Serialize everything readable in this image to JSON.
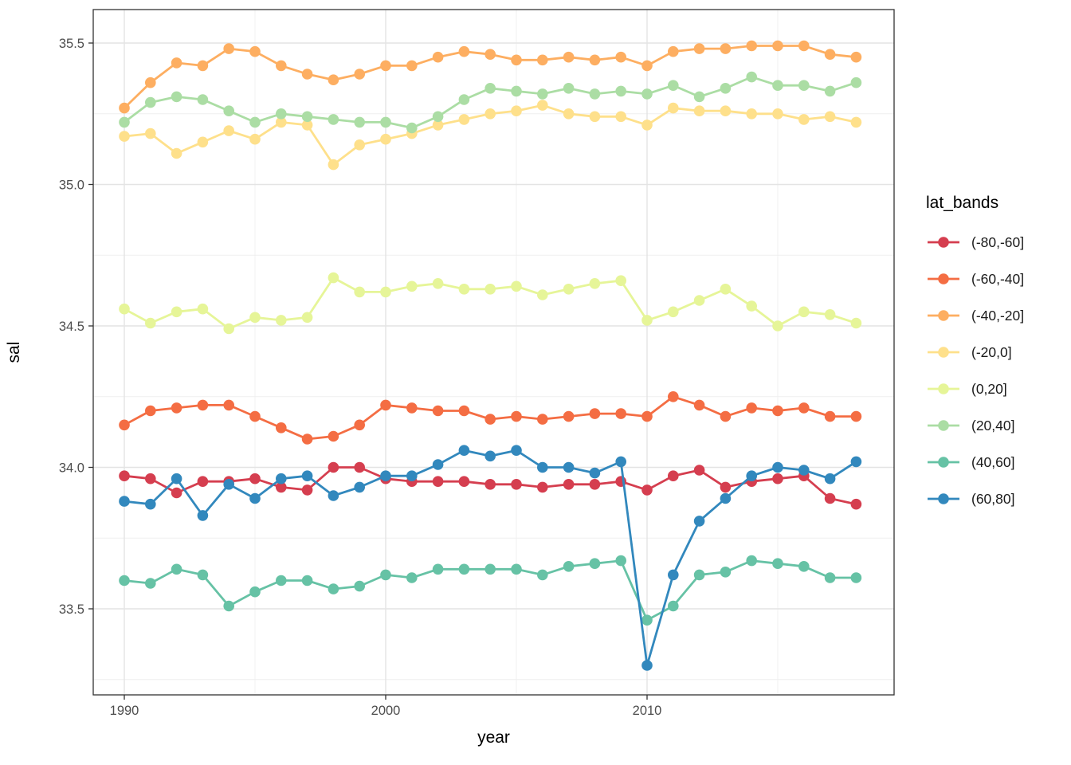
{
  "figure": {
    "x_axis_label": "year",
    "y_axis_label": "sal",
    "legend_title": "lat_bands"
  },
  "chart_data": {
    "type": "line",
    "title": "",
    "xlabel": "year",
    "ylabel": "sal",
    "legend_title": "lat_bands",
    "legend_position": "right",
    "grid": "white panel, light-gray major and minor gridlines, dark panel border (ggplot theme_bw style)",
    "marker": "filled circle on line",
    "x": [
      1990,
      1991,
      1992,
      1993,
      1994,
      1995,
      1996,
      1997,
      1998,
      1999,
      2000,
      2001,
      2002,
      2003,
      2004,
      2005,
      2006,
      2007,
      2008,
      2009,
      2010,
      2011,
      2012,
      2013,
      2014,
      2015,
      2016,
      2017,
      2018
    ],
    "x_ticks": [
      1990,
      2000,
      2010
    ],
    "x_tick_labels": [
      "1990",
      "2000",
      "2010"
    ],
    "x_minor_ticks": [
      1995,
      2005,
      2015
    ],
    "y_ticks": [
      33.5,
      34.0,
      34.5,
      35.0,
      35.5
    ],
    "y_tick_labels": [
      "33.5",
      "34.0",
      "34.5",
      "35.0",
      "35.5"
    ],
    "y_minor_ticks": [
      33.25,
      33.75,
      34.25,
      34.75,
      35.25
    ],
    "xlim": [
      1988.8,
      2019.4
    ],
    "ylim": [
      33.19,
      35.62
    ],
    "series": [
      {
        "name": "(-80,-60]",
        "color": "#D53E4F",
        "values": [
          33.97,
          33.96,
          33.91,
          33.95,
          33.95,
          33.96,
          33.93,
          33.92,
          34.0,
          34.0,
          33.96,
          33.95,
          33.95,
          33.95,
          33.94,
          33.94,
          33.93,
          33.94,
          33.94,
          33.95,
          33.92,
          33.97,
          33.99,
          33.93,
          33.95,
          33.96,
          33.97,
          33.89,
          33.87
        ]
      },
      {
        "name": "(-60,-40]",
        "color": "#F46D43",
        "values": [
          34.15,
          34.2,
          34.21,
          34.22,
          34.22,
          34.18,
          34.14,
          34.1,
          34.11,
          34.15,
          34.22,
          34.21,
          34.2,
          34.2,
          34.17,
          34.18,
          34.17,
          34.18,
          34.19,
          34.19,
          34.18,
          34.25,
          34.22,
          34.18,
          34.21,
          34.2,
          34.21,
          34.18,
          34.18
        ]
      },
      {
        "name": "(-40,-20]",
        "color": "#FDAE61",
        "values": [
          35.27,
          35.36,
          35.43,
          35.42,
          35.48,
          35.47,
          35.42,
          35.39,
          35.37,
          35.39,
          35.42,
          35.42,
          35.45,
          35.47,
          35.46,
          35.44,
          35.44,
          35.45,
          35.44,
          35.45,
          35.42,
          35.47,
          35.48,
          35.48,
          35.49,
          35.49,
          35.49,
          35.46,
          35.45
        ]
      },
      {
        "name": "(-20,0]",
        "color": "#FEE08B",
        "values": [
          35.17,
          35.18,
          35.11,
          35.15,
          35.19,
          35.16,
          35.22,
          35.21,
          35.07,
          35.14,
          35.16,
          35.18,
          35.21,
          35.23,
          35.25,
          35.26,
          35.28,
          35.25,
          35.24,
          35.24,
          35.21,
          35.27,
          35.26,
          35.26,
          35.25,
          35.25,
          35.23,
          35.24,
          35.22
        ]
      },
      {
        "name": "(0,20]",
        "color": "#E6F598",
        "values": [
          34.56,
          34.51,
          34.55,
          34.56,
          34.49,
          34.53,
          34.52,
          34.53,
          34.67,
          34.62,
          34.62,
          34.64,
          34.65,
          34.63,
          34.63,
          34.64,
          34.61,
          34.63,
          34.65,
          34.66,
          34.52,
          34.55,
          34.59,
          34.63,
          34.57,
          34.5,
          34.55,
          34.54,
          34.51
        ]
      },
      {
        "name": "(20,40]",
        "color": "#ABDDA4",
        "values": [
          35.22,
          35.29,
          35.31,
          35.3,
          35.26,
          35.22,
          35.25,
          35.24,
          35.23,
          35.22,
          35.22,
          35.2,
          35.24,
          35.3,
          35.34,
          35.33,
          35.32,
          35.34,
          35.32,
          35.33,
          35.32,
          35.35,
          35.31,
          35.34,
          35.38,
          35.35,
          35.35,
          35.33,
          35.36
        ]
      },
      {
        "name": "(40,60]",
        "color": "#66C2A5",
        "values": [
          33.6,
          33.59,
          33.64,
          33.62,
          33.51,
          33.56,
          33.6,
          33.6,
          33.57,
          33.58,
          33.62,
          33.61,
          33.64,
          33.64,
          33.64,
          33.64,
          33.62,
          33.65,
          33.66,
          33.67,
          33.46,
          33.51,
          33.62,
          33.63,
          33.67,
          33.66,
          33.65,
          33.61,
          33.61
        ]
      },
      {
        "name": "(60,80]",
        "color": "#3288BD",
        "values": [
          33.88,
          33.87,
          33.96,
          33.83,
          33.94,
          33.89,
          33.96,
          33.97,
          33.9,
          33.93,
          33.97,
          33.97,
          34.01,
          34.06,
          34.04,
          34.06,
          34.0,
          34.0,
          33.98,
          34.02,
          33.3,
          33.62,
          33.81,
          33.89,
          33.97,
          34.0,
          33.99,
          33.96,
          34.02
        ]
      }
    ],
    "style": {
      "panel_border_color": "#333333",
      "major_grid_color": "#E4E4E4",
      "minor_grid_color": "#EFEFEF",
      "tick_label_color": "#4D4D4D",
      "text_color": "#000000",
      "background": "#FFFFFF"
    }
  }
}
